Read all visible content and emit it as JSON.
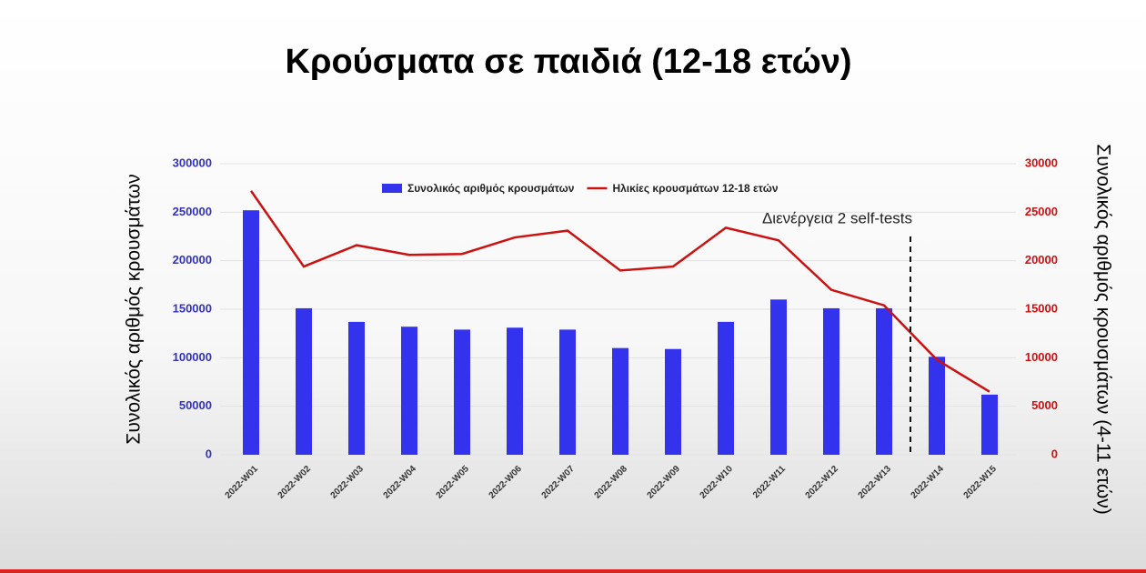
{
  "chart_data": {
    "type": "bar-line",
    "title": "Κρούσματα σε παιδιά (12-18 ετών)",
    "y_label": "Συνολικός αριθμός κρουσμάτων",
    "y2_label": "Συνολικός αριθμός κρουσμάτων (4-11 ετών)",
    "annotation": "Διενέργεια 2 self-tests",
    "categories": [
      "2022-W01",
      "2022-W02",
      "2022-W03",
      "2022-W04",
      "2022-W05",
      "2022-W06",
      "2022-W07",
      "2022-W08",
      "2022-W09",
      "2022-W10",
      "2022-W11",
      "2022-W12",
      "2022-W13",
      "2022-W14",
      "2022-W15"
    ],
    "series": [
      {
        "name": "Συνολικός αριθμός κρουσμάτων",
        "color": "#3333ee",
        "type": "bar",
        "values": [
          252000,
          151000,
          137000,
          132000,
          129000,
          131000,
          129000,
          110000,
          109000,
          137000,
          160000,
          151000,
          151000,
          101000,
          62000
        ]
      },
      {
        "name": "Ηλικίες κρουσμάτων 12-18 ετών",
        "color": "#cc1111",
        "type": "line",
        "axis": "y2",
        "values": [
          27200,
          19400,
          21600,
          20600,
          20700,
          22400,
          23100,
          19000,
          19400,
          23400,
          22100,
          17000,
          15400,
          9800,
          6500
        ]
      }
    ],
    "ylim": [
      0,
      300000
    ],
    "yticks": [
      0,
      50000,
      100000,
      150000,
      200000,
      250000,
      300000
    ],
    "y2lim": [
      0,
      30000
    ],
    "y2ticks": [
      0,
      5000,
      10000,
      15000,
      20000,
      25000,
      30000
    ],
    "grid": true
  }
}
